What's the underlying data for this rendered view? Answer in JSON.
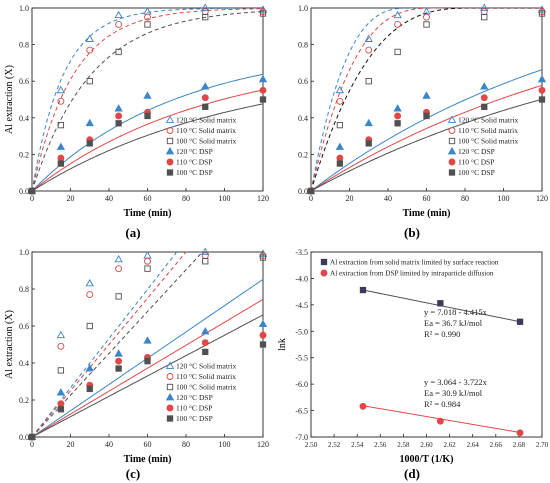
{
  "panels": {
    "a": {
      "label": "(a)"
    },
    "b": {
      "label": "(b)"
    },
    "c": {
      "label": "(c)"
    },
    "d": {
      "label": "(d)"
    }
  },
  "chart_data": [
    {
      "id": "a",
      "type": "scatter",
      "title": "",
      "xlabel": "Time (min)",
      "ylabel": "Al extraction (X)",
      "xlim": [
        0,
        120
      ],
      "ylim": [
        0,
        1.0
      ],
      "xticks": [
        0,
        20,
        40,
        60,
        80,
        100,
        120
      ],
      "yticks": [
        0.0,
        0.2,
        0.4,
        0.6,
        0.8,
        1.0
      ],
      "legend_position": "bottom-right",
      "series": [
        {
          "name": "120 °C Solid matrix",
          "marker": "triangle-open",
          "color": "#3a86c8",
          "x": [
            0,
            15,
            30,
            45,
            60,
            90,
            120
          ],
          "y": [
            0,
            0.55,
            0.83,
            0.96,
            0.98,
            1.0,
            0.99
          ]
        },
        {
          "name": "110 °C Solid matrix",
          "marker": "circle-open",
          "color": "#e04848",
          "x": [
            0,
            15,
            30,
            45,
            60,
            90,
            120
          ],
          "y": [
            0,
            0.49,
            0.77,
            0.91,
            0.95,
            0.98,
            0.98
          ]
        },
        {
          "name": "100 °C Solid matrix",
          "marker": "square-open",
          "color": "#505050",
          "x": [
            0,
            15,
            30,
            45,
            60,
            90,
            120
          ],
          "y": [
            0,
            0.36,
            0.6,
            0.76,
            0.91,
            0.95,
            0.97
          ]
        },
        {
          "name": "120 °C DSP",
          "marker": "triangle-filled",
          "color": "#3a86c8",
          "x": [
            0,
            15,
            30,
            45,
            60,
            90,
            120
          ],
          "y": [
            0,
            0.24,
            0.37,
            0.45,
            0.52,
            0.57,
            0.61
          ]
        },
        {
          "name": "110 °C DSP",
          "marker": "circle-filled",
          "color": "#e04848",
          "x": [
            0,
            15,
            30,
            45,
            60,
            90,
            120
          ],
          "y": [
            0,
            0.18,
            0.28,
            0.41,
            0.43,
            0.51,
            0.55
          ]
        },
        {
          "name": "100 °C DSP",
          "marker": "square-filled",
          "color": "#505050",
          "x": [
            0,
            15,
            30,
            45,
            60,
            90,
            120
          ],
          "y": [
            0,
            0.15,
            0.26,
            0.37,
            0.41,
            0.46,
            0.5
          ]
        }
      ],
      "fits": [
        {
          "model": "exp",
          "k": 0.062,
          "color": "#3a86c8",
          "dash": true
        },
        {
          "model": "exp",
          "k": 0.047,
          "color": "#e04848",
          "dash": true
        },
        {
          "model": "exp",
          "k": 0.033,
          "color": "#505050",
          "dash": true
        },
        {
          "model": "sat",
          "a": 0.8,
          "k": 0.0133,
          "color": "#3a86c8",
          "dash": false
        },
        {
          "model": "sat",
          "a": 0.75,
          "k": 0.0111,
          "color": "#e04848",
          "dash": false
        },
        {
          "model": "sat",
          "a": 0.7,
          "k": 0.0095,
          "color": "#505050",
          "dash": false
        }
      ]
    },
    {
      "id": "b",
      "type": "scatter",
      "title": "",
      "xlabel": "Time (min)",
      "ylabel": "",
      "xlim": [
        0,
        120
      ],
      "ylim": [
        0,
        1.0
      ],
      "xticks": [
        0,
        20,
        40,
        60,
        80,
        100,
        120
      ],
      "yticks": [
        0.0,
        0.2,
        0.4,
        0.6,
        0.8,
        1.0
      ],
      "legend_position": "bottom-right",
      "series": [
        {
          "name": "120 °C Solid matrix",
          "marker": "triangle-open",
          "color": "#3a86c8",
          "x": [
            0,
            15,
            30,
            45,
            60,
            90,
            120
          ],
          "y": [
            0,
            0.55,
            0.83,
            0.96,
            0.98,
            1.0,
            0.99
          ]
        },
        {
          "name": "110 °C Solid matrix",
          "marker": "circle-open",
          "color": "#e04848",
          "x": [
            0,
            15,
            30,
            45,
            60,
            90,
            120
          ],
          "y": [
            0,
            0.49,
            0.77,
            0.91,
            0.95,
            0.98,
            0.98
          ]
        },
        {
          "name": "100 °C Solid matrix",
          "marker": "square-open",
          "color": "#505050",
          "x": [
            0,
            15,
            30,
            45,
            60,
            90,
            120
          ],
          "y": [
            0,
            0.36,
            0.6,
            0.76,
            0.91,
            0.95,
            0.97
          ]
        },
        {
          "name": "120 °C DSP",
          "marker": "triangle-filled",
          "color": "#3a86c8",
          "x": [
            0,
            15,
            30,
            45,
            60,
            90,
            120
          ],
          "y": [
            0,
            0.24,
            0.37,
            0.45,
            0.52,
            0.57,
            0.61
          ]
        },
        {
          "name": "110 °C DSP",
          "marker": "circle-filled",
          "color": "#e04848",
          "x": [
            0,
            15,
            30,
            45,
            60,
            90,
            120
          ],
          "y": [
            0,
            0.18,
            0.28,
            0.41,
            0.43,
            0.51,
            0.55
          ]
        },
        {
          "name": "100 °C DSP",
          "marker": "square-filled",
          "color": "#505050",
          "x": [
            0,
            15,
            30,
            45,
            60,
            90,
            120
          ],
          "y": [
            0,
            0.15,
            0.26,
            0.37,
            0.41,
            0.46,
            0.5
          ]
        }
      ],
      "fits": [
        {
          "model": "sc",
          "tau": 53,
          "color": "#3a86c8",
          "dash": true
        },
        {
          "model": "sc",
          "tau": 66,
          "color": "#e04848",
          "dash": true
        },
        {
          "model": "sc",
          "tau": 86,
          "color": "#101010",
          "dash": true
        },
        {
          "model": "sat",
          "a": 1.2,
          "k": 0.0067,
          "color": "#3a86c8",
          "dash": false
        },
        {
          "model": "sat",
          "a": 1.1,
          "k": 0.0062,
          "color": "#e04848",
          "dash": false
        },
        {
          "model": "sat",
          "a": 1.0,
          "k": 0.0058,
          "color": "#505050",
          "dash": false
        }
      ]
    },
    {
      "id": "c",
      "type": "scatter",
      "title": "",
      "xlabel": "Time (min)",
      "ylabel": "Al extraction (X)",
      "xlim": [
        0,
        120
      ],
      "ylim": [
        0,
        1.0
      ],
      "xticks": [
        0,
        20,
        40,
        60,
        80,
        100,
        120
      ],
      "yticks": [
        0.0,
        0.2,
        0.4,
        0.6,
        0.8,
        1.0
      ],
      "legend_position": "bottom-right",
      "series": [
        {
          "name": "120 °C Solid matrix",
          "marker": "triangle-open",
          "color": "#3a86c8",
          "x": [
            0,
            15,
            30,
            45,
            60,
            90,
            120
          ],
          "y": [
            0,
            0.55,
            0.83,
            0.96,
            0.98,
            1.0,
            0.99
          ]
        },
        {
          "name": "110 °C Solid matrix",
          "marker": "circle-open",
          "color": "#e04848",
          "x": [
            0,
            15,
            30,
            45,
            60,
            90,
            120
          ],
          "y": [
            0,
            0.49,
            0.77,
            0.91,
            0.95,
            0.98,
            0.98
          ]
        },
        {
          "name": "100 °C Solid matrix",
          "marker": "square-open",
          "color": "#505050",
          "x": [
            0,
            15,
            30,
            45,
            60,
            90,
            120
          ],
          "y": [
            0,
            0.36,
            0.6,
            0.76,
            0.91,
            0.95,
            0.97
          ]
        },
        {
          "name": "120 °C DSP",
          "marker": "triangle-filled",
          "color": "#3a86c8",
          "x": [
            0,
            15,
            30,
            45,
            60,
            90,
            120
          ],
          "y": [
            0,
            0.24,
            0.37,
            0.45,
            0.52,
            0.57,
            0.61
          ]
        },
        {
          "name": "110 °C DSP",
          "marker": "circle-filled",
          "color": "#e04848",
          "x": [
            0,
            15,
            30,
            45,
            60,
            90,
            120
          ],
          "y": [
            0,
            0.18,
            0.28,
            0.41,
            0.43,
            0.51,
            0.55
          ]
        },
        {
          "name": "100 °C DSP",
          "marker": "square-filled",
          "color": "#505050",
          "x": [
            0,
            15,
            30,
            45,
            60,
            90,
            120
          ],
          "y": [
            0,
            0.15,
            0.26,
            0.37,
            0.41,
            0.46,
            0.5
          ]
        }
      ],
      "fits": [
        {
          "model": "lin",
          "slope": 0.0133,
          "color": "#3a86c8",
          "dash": true
        },
        {
          "model": "lin",
          "slope": 0.0125,
          "color": "#e04848",
          "dash": true
        },
        {
          "model": "lin",
          "slope": 0.0113,
          "color": "#505050",
          "dash": true
        },
        {
          "model": "lin",
          "slope": 0.0071,
          "color": "#3a86c8",
          "dash": false
        },
        {
          "model": "lin",
          "slope": 0.0062,
          "color": "#e04848",
          "dash": false
        },
        {
          "model": "lin",
          "slope": 0.0055,
          "color": "#505050",
          "dash": false
        }
      ]
    },
    {
      "id": "d",
      "type": "scatter",
      "title": "",
      "xlabel": "1000/T (1/K)",
      "ylabel": "lnk",
      "xlim": [
        2.5,
        2.7
      ],
      "ylim": [
        -7.0,
        -3.5
      ],
      "xticks": [
        "2.50",
        "2.52",
        "2.54",
        "2.56",
        "2.58",
        "2.60",
        "2.62",
        "2.64",
        "2.66",
        "2.68",
        "2.70"
      ],
      "yticks": [
        "-3.5",
        "-4.0",
        "-4.5",
        "-5.0",
        "-5.5",
        "-6.0",
        "-6.5",
        "-7.0"
      ],
      "legend_position": "top",
      "series": [
        {
          "name": "Al extraction from solid matrix limited by surface reaction",
          "marker": "square-filled",
          "color": "#3a3a5a",
          "x": [
            2.545,
            2.612,
            2.681
          ],
          "y": [
            -4.22,
            -4.47,
            -4.82
          ]
        },
        {
          "name": "Al extraction from DSP limited by intraparticle diffusion",
          "marker": "circle-filled",
          "color": "#e04848",
          "x": [
            2.545,
            2.612,
            2.681
          ],
          "y": [
            -6.42,
            -6.7,
            -6.92
          ]
        }
      ],
      "fits": [
        {
          "model": "linear",
          "intercept": 7.018,
          "slope": -4.415,
          "color": "#505050"
        },
        {
          "model": "linear",
          "intercept": 3.064,
          "slope": -3.722,
          "color": "#e04848"
        }
      ],
      "annotations": [
        {
          "lines": [
            "y = 7.018 - 4.415x",
            "Ea = 36.7 kJ/mol",
            "R² = 0.990"
          ]
        },
        {
          "lines": [
            "y = 3.064 - 3.722x",
            "Ea = 30.9 kJ/mol",
            "R² = 0.984"
          ]
        }
      ]
    }
  ]
}
